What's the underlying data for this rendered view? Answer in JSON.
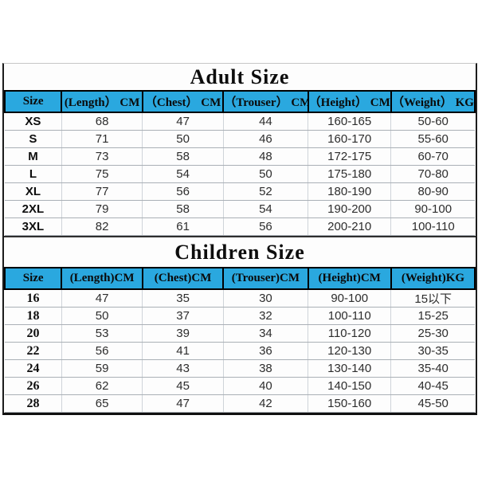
{
  "colors": {
    "header_bg": "#2aa8df",
    "outer_border": "#000000",
    "grid_line": "#aab0b6",
    "page_bg": "#ffffff"
  },
  "adult": {
    "title": "Adult Size",
    "headers": [
      "Size",
      "(Length） CM",
      "（Chest） CM",
      "（Trouser） CM",
      "（Height） CM",
      "（Weight） KG"
    ],
    "rows": [
      [
        "XS",
        "68",
        "47",
        "44",
        "160-165",
        "50-60"
      ],
      [
        "S",
        "71",
        "50",
        "46",
        "160-170",
        "55-60"
      ],
      [
        "M",
        "73",
        "58",
        "48",
        "172-175",
        "60-70"
      ],
      [
        "L",
        "75",
        "54",
        "50",
        "175-180",
        "70-80"
      ],
      [
        "XL",
        "77",
        "56",
        "52",
        "180-190",
        "80-90"
      ],
      [
        "2XL",
        "79",
        "58",
        "54",
        "190-200",
        "90-100"
      ],
      [
        "3XL",
        "82",
        "61",
        "56",
        "200-210",
        "100-110"
      ]
    ]
  },
  "children": {
    "title": "Children Size",
    "headers": [
      "Size",
      "(Length)CM",
      "(Chest)CM",
      "(Trouser)CM",
      "(Height)CM",
      "(Weight)KG"
    ],
    "rows": [
      [
        "16",
        "47",
        "35",
        "30",
        "90-100",
        "15以下"
      ],
      [
        "18",
        "50",
        "37",
        "32",
        "100-110",
        "15-25"
      ],
      [
        "20",
        "53",
        "39",
        "34",
        "110-120",
        "25-30"
      ],
      [
        "22",
        "56",
        "41",
        "36",
        "120-130",
        "30-35"
      ],
      [
        "24",
        "59",
        "43",
        "38",
        "130-140",
        "35-40"
      ],
      [
        "26",
        "62",
        "45",
        "40",
        "140-150",
        "40-45"
      ],
      [
        "28",
        "65",
        "47",
        "42",
        "150-160",
        "45-50"
      ]
    ]
  }
}
